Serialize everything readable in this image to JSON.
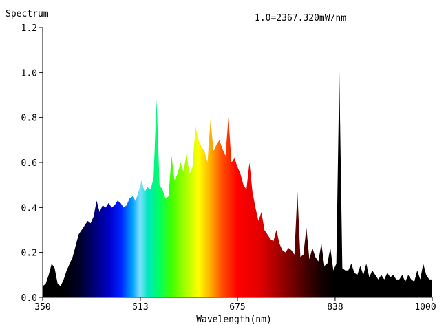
{
  "chart_data": {
    "type": "area",
    "ylabel": "Spectrum",
    "xlabel": "Wavelength(nm)",
    "scale_note": "1.0=2367.320mW/nm",
    "xlim": [
      350,
      1000
    ],
    "ylim": [
      0,
      1.2
    ],
    "x_ticks": [
      "350",
      "513",
      "675",
      "838",
      "1000"
    ],
    "x_tick_values": [
      350,
      513,
      675,
      838,
      1000
    ],
    "y_ticks": [
      "0.0",
      "0.2",
      "0.4",
      "0.6",
      "0.8",
      "1.0",
      "1.2"
    ],
    "y_tick_values": [
      0,
      0.2,
      0.4,
      0.6,
      0.8,
      1.0,
      1.2
    ],
    "fill": "wavelength-spectrum-gradient",
    "x": [
      350,
      355,
      360,
      365,
      370,
      375,
      380,
      385,
      390,
      395,
      400,
      405,
      410,
      415,
      420,
      425,
      430,
      435,
      440,
      445,
      450,
      455,
      460,
      465,
      470,
      475,
      480,
      485,
      490,
      495,
      500,
      505,
      510,
      515,
      520,
      525,
      530,
      535,
      540,
      545,
      550,
      555,
      560,
      565,
      570,
      575,
      580,
      585,
      590,
      595,
      600,
      605,
      610,
      615,
      620,
      625,
      630,
      635,
      640,
      645,
      650,
      655,
      660,
      665,
      670,
      675,
      680,
      685,
      690,
      695,
      700,
      705,
      710,
      715,
      720,
      725,
      730,
      735,
      740,
      745,
      750,
      755,
      760,
      765,
      770,
      775,
      780,
      785,
      790,
      795,
      800,
      805,
      810,
      815,
      820,
      825,
      830,
      835,
      840,
      845,
      850,
      855,
      860,
      865,
      870,
      875,
      880,
      885,
      890,
      895,
      900,
      905,
      910,
      915,
      920,
      925,
      930,
      935,
      940,
      945,
      950,
      955,
      960,
      965,
      970,
      975,
      980,
      985,
      990,
      995,
      1000
    ],
    "y": [
      0.05,
      0.06,
      0.1,
      0.15,
      0.13,
      0.06,
      0.05,
      0.08,
      0.12,
      0.15,
      0.18,
      0.23,
      0.28,
      0.3,
      0.32,
      0.34,
      0.33,
      0.36,
      0.43,
      0.38,
      0.41,
      0.4,
      0.42,
      0.4,
      0.41,
      0.43,
      0.42,
      0.4,
      0.41,
      0.44,
      0.45,
      0.43,
      0.47,
      0.52,
      0.47,
      0.49,
      0.48,
      0.53,
      0.88,
      0.5,
      0.48,
      0.44,
      0.45,
      0.63,
      0.52,
      0.55,
      0.6,
      0.56,
      0.64,
      0.55,
      0.58,
      0.76,
      0.7,
      0.67,
      0.65,
      0.6,
      0.79,
      0.65,
      0.68,
      0.7,
      0.66,
      0.63,
      0.8,
      0.6,
      0.62,
      0.58,
      0.55,
      0.5,
      0.48,
      0.6,
      0.47,
      0.4,
      0.34,
      0.38,
      0.3,
      0.28,
      0.26,
      0.25,
      0.3,
      0.24,
      0.21,
      0.2,
      0.22,
      0.21,
      0.19,
      0.47,
      0.18,
      0.19,
      0.31,
      0.17,
      0.22,
      0.18,
      0.16,
      0.24,
      0.14,
      0.15,
      0.22,
      0.12,
      0.15,
      1.0,
      0.13,
      0.12,
      0.12,
      0.15,
      0.11,
      0.1,
      0.14,
      0.1,
      0.15,
      0.09,
      0.12,
      0.1,
      0.08,
      0.1,
      0.08,
      0.11,
      0.09,
      0.1,
      0.08,
      0.08,
      0.1,
      0.07,
      0.1,
      0.08,
      0.07,
      0.12,
      0.08,
      0.15,
      0.1,
      0.08,
      0.08
    ]
  }
}
